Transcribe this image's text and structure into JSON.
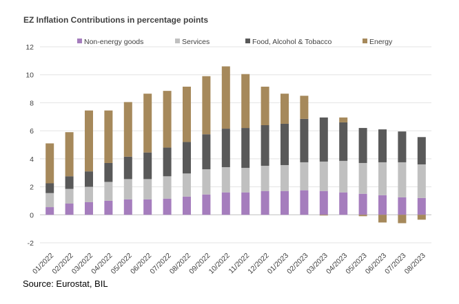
{
  "chart_data": {
    "type": "bar",
    "stacked": true,
    "title": "EZ Inflation Contributions  in percentage points",
    "xlabel": "",
    "ylabel": "",
    "categories": [
      "01/2022",
      "02/2022",
      "03/2022",
      "04/2022",
      "05/2022",
      "06/2022",
      "07/2022",
      "08/2022",
      "09/2022",
      "10/2022",
      "11/2022",
      "12/2022",
      "01/2023",
      "02/2023",
      "03/2023",
      "04/2023",
      "05/2023",
      "06/2023",
      "07/2023",
      "08/2023"
    ],
    "series": [
      {
        "name": "Non-energy goods",
        "color": "#a57dbd",
        "values": [
          0.55,
          0.8,
          0.9,
          1.0,
          1.1,
          1.1,
          1.15,
          1.3,
          1.45,
          1.6,
          1.6,
          1.7,
          1.7,
          1.75,
          1.7,
          1.6,
          1.5,
          1.4,
          1.25,
          1.2
        ]
      },
      {
        "name": "Services",
        "color": "#c0c0c0",
        "values": [
          1.0,
          1.05,
          1.1,
          1.35,
          1.45,
          1.45,
          1.6,
          1.65,
          1.8,
          1.8,
          1.75,
          1.8,
          1.85,
          2.0,
          2.1,
          2.25,
          2.2,
          2.35,
          2.5,
          2.4
        ]
      },
      {
        "name": "Food, Alcohol & Tobacco",
        "color": "#595959",
        "values": [
          0.7,
          0.9,
          1.1,
          1.35,
          1.6,
          1.9,
          2.05,
          2.25,
          2.5,
          2.75,
          2.85,
          2.9,
          2.95,
          3.1,
          3.15,
          2.75,
          2.5,
          2.35,
          2.2,
          1.95
        ]
      },
      {
        "name": "Energy",
        "color": "#a6895b",
        "values": [
          2.85,
          3.15,
          4.35,
          3.75,
          3.9,
          4.2,
          4.05,
          3.95,
          4.15,
          4.45,
          3.85,
          2.75,
          2.15,
          1.65,
          -0.05,
          0.35,
          -0.1,
          -0.55,
          -0.6,
          -0.35
        ]
      }
    ],
    "ylim": [
      -2,
      12
    ],
    "yticks": [
      -2,
      0,
      2,
      4,
      6,
      8,
      10,
      12
    ],
    "grid": true,
    "legend": "top"
  },
  "footer": {
    "source": "Source: Eurostat, BIL"
  }
}
